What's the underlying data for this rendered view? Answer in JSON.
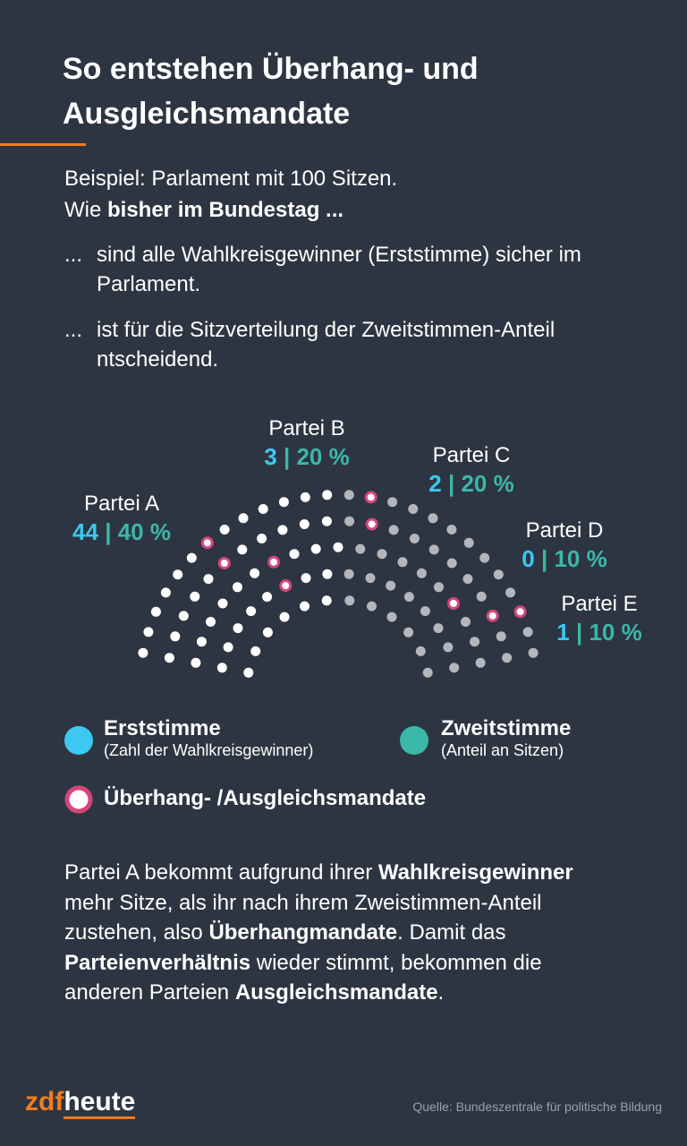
{
  "header": {
    "title": "So entstehen Überhang- und Ausgleichsmandate"
  },
  "intro": [
    [
      {
        "text": "Beispiel: Parlament mit 100 Sitzen.",
        "bold": false
      }
    ],
    [
      {
        "text": "Wie ",
        "bold": false
      },
      {
        "text": "bisher im Bundestag ...",
        "bold": true
      }
    ]
  ],
  "bullets": [
    {
      "marker": "...",
      "text": "sind alle Wahlkreisgewinner (Erststimme) sicher im Parlament."
    },
    {
      "marker": "...",
      "text": "ist für die Sitzverteilung der Zweitstimmen-Anteil ntscheidend."
    }
  ],
  "separator": "|",
  "parties": [
    {
      "name": "Partei A",
      "first": "44",
      "second": "40 %"
    },
    {
      "name": "Partei B",
      "first": "3",
      "second": "20 %"
    },
    {
      "name": "Partei C",
      "first": "2",
      "second": "20 %"
    },
    {
      "name": "Partei D",
      "first": "0",
      "second": "10 %"
    },
    {
      "name": "Partei E",
      "first": "1",
      "second": "10 %"
    }
  ],
  "legend": [
    {
      "title": "Erststimme",
      "subtitle": "(Zahl der Wahlkreisgewinner)"
    },
    {
      "title": "Zweitstimme",
      "subtitle": "(Anteil an Sitzen)"
    },
    {
      "title": "Überhang- /Ausgleichsmandate"
    }
  ],
  "body": [
    {
      "text": "Partei A bekommt aufgrund ihrer ",
      "bold": false
    },
    {
      "text": "Wahlkreisgewinner",
      "bold": true
    },
    {
      "text": " mehr Sitze, als ihr nach ihrem Zweistimmen-Anteil zustehen, also ",
      "bold": false
    },
    {
      "text": "Überhangmandate",
      "bold": true
    },
    {
      "text": ". Damit das ",
      "bold": false
    },
    {
      "text": "Parteienverhältnis",
      "bold": true
    },
    {
      "text": " wieder stimmt, bekommen die anderen Parteien ",
      "bold": false
    },
    {
      "text": "Ausgleichsmandate",
      "bold": true
    },
    {
      "text": ".",
      "bold": false
    }
  ],
  "footer": {
    "logo_left": "zdf",
    "logo_right": "heute",
    "source": "Quelle: Bundeszentrale für politische Bildung"
  }
}
